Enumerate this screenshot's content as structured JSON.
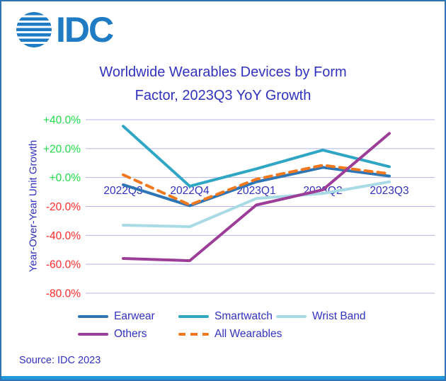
{
  "logo": {
    "text": "IDC",
    "color": "#1E7BC4",
    "icon": "globe-stripes"
  },
  "header": {
    "title_line1": "Worldwide Wearables Devices by Form",
    "title_line2": "Factor, 2023Q3 YoY Growth"
  },
  "y_axis": {
    "title": "Year-Over-Year Unit Growth",
    "ticks": [
      {
        "label": "+40.0%",
        "value": 40,
        "color": "#21DC48"
      },
      {
        "label": "+20.0%",
        "value": 20,
        "color": "#21DC48"
      },
      {
        "label": "+0.0%",
        "value": 0,
        "color": "#21DC48"
      },
      {
        "label": "-20.0%",
        "value": -20,
        "color": "#FF2A2A"
      },
      {
        "label": "-40.0%",
        "value": -40,
        "color": "#FF2A2A"
      },
      {
        "label": "-60.0%",
        "value": -60,
        "color": "#FF2A2A"
      },
      {
        "label": "-80.0%",
        "value": -80,
        "color": "#FF2A2A"
      }
    ]
  },
  "chart_data": {
    "type": "line",
    "title": "Worldwide Wearables Devices by Form Factor, 2023Q3 YoY Growth",
    "categories": [
      "2022Q3",
      "2022Q4",
      "2023Q1",
      "2023Q2",
      "2023Q3"
    ],
    "series": [
      {
        "name": "Earwear",
        "color": "#2E75B6",
        "dash": false,
        "values": [
          -5,
          -19.5,
          -3,
          7,
          1
        ]
      },
      {
        "name": "Smartwatch",
        "color": "#2FA6C4",
        "dash": false,
        "values": [
          35.5,
          -6,
          6,
          19,
          7.5
        ]
      },
      {
        "name": "Wrist Band",
        "color": "#A9DBE6",
        "dash": false,
        "values": [
          -33,
          -34,
          -14.5,
          -11,
          -3
        ]
      },
      {
        "name": "Others",
        "color": "#9C3D97",
        "dash": false,
        "values": [
          -56,
          -57.5,
          -19,
          -8.5,
          30.5
        ]
      },
      {
        "name": "All Wearables",
        "color": "#F0791F",
        "dash": true,
        "values": [
          1.9,
          -18.9,
          -1.2,
          8.5,
          2.6
        ]
      }
    ],
    "draw_order": [
      2,
      0,
      1,
      4,
      3
    ],
    "xlabel": "",
    "ylabel": "Year-Over-Year Unit Growth",
    "ylim": [
      -80,
      40
    ],
    "ytick_step": 20,
    "grid": true,
    "legend_position": "bottom",
    "axis_text_color": "#3232BE",
    "gridline_color": "#B4B4E8"
  },
  "legend": {
    "items": [
      {
        "label": "Earwear",
        "color": "#2E75B6",
        "dash": false
      },
      {
        "label": "Smartwatch",
        "color": "#2FA6C4",
        "dash": false
      },
      {
        "label": "Wrist Band",
        "color": "#A9DBE6",
        "dash": false
      },
      {
        "label": "Others",
        "color": "#9C3D97",
        "dash": false
      },
      {
        "label": "All Wearables",
        "color": "#F0791F",
        "dash": true
      }
    ]
  },
  "source": {
    "text": "Source: IDC 2023"
  },
  "colors": {
    "border": "#2E74B5",
    "bottom_bar": "#2196D8",
    "gridline": "#B4B4E8",
    "logo_blue": "#1E7BC4",
    "text_indigo": "#3232BE"
  }
}
